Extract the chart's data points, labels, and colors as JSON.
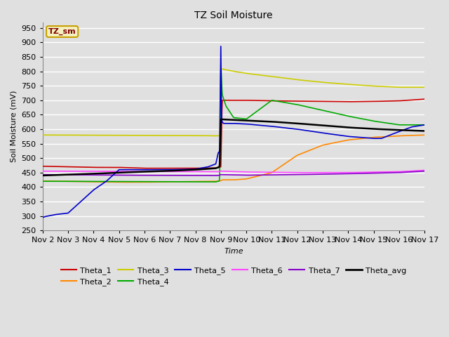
{
  "title": "TZ Soil Moisture",
  "xlabel": "Time",
  "ylabel": "Soil Moisture (mV)",
  "ylim": [
    250,
    970
  ],
  "yticks": [
    250,
    300,
    350,
    400,
    450,
    500,
    550,
    600,
    650,
    700,
    750,
    800,
    850,
    900,
    950
  ],
  "xtick_labels": [
    "Nov 2",
    "Nov 3",
    "Nov 4",
    "Nov 5",
    "Nov 6",
    "Nov 7",
    "Nov 8",
    "Nov 9",
    "Nov 10",
    "Nov 11",
    "Nov 12",
    "Nov 13",
    "Nov 14",
    "Nov 15",
    "Nov 16",
    "Nov 17"
  ],
  "background_color": "#e0e0e0",
  "plot_bg_color": "#e0e0e0",
  "grid_color": "#ffffff",
  "annotation_label": "TZ_sm",
  "annotation_bg": "#f5f0c0",
  "annotation_border": "#c8a000",
  "series": {
    "Theta_1": {
      "color": "#cc0000",
      "lw": 1.2
    },
    "Theta_2": {
      "color": "#ff8800",
      "lw": 1.2
    },
    "Theta_3": {
      "color": "#cccc00",
      "lw": 1.2
    },
    "Theta_4": {
      "color": "#00aa00",
      "lw": 1.2
    },
    "Theta_5": {
      "color": "#0000cc",
      "lw": 1.2
    },
    "Theta_6": {
      "color": "#ff44ff",
      "lw": 1.2
    },
    "Theta_7": {
      "color": "#8800cc",
      "lw": 1.2
    },
    "Theta_avg": {
      "color": "#000000",
      "lw": 1.8
    }
  }
}
